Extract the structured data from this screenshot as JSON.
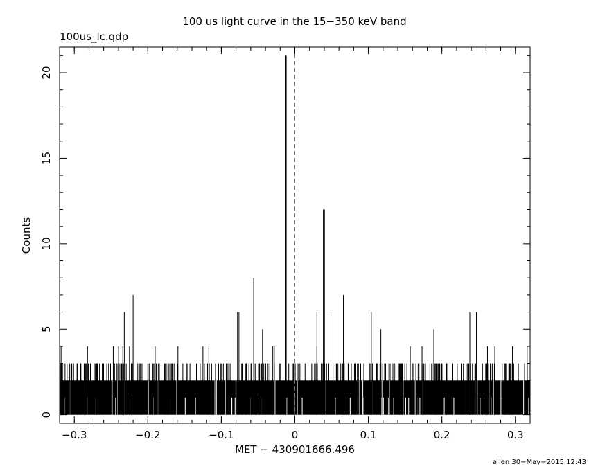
{
  "chart_data": {
    "type": "bar",
    "title": "100 us light curve in the 15−350 keV band",
    "file_label": "100us_lc.qdp",
    "xlabel": "MET − 430901666.496",
    "ylabel": "Counts",
    "xlim": [
      -0.32,
      0.32
    ],
    "ylim": [
      -0.5,
      21.5
    ],
    "bin_width": 0.0001,
    "xticks": [
      -0.3,
      -0.2,
      -0.1,
      0,
      0.1,
      0.2,
      0.3
    ],
    "xtick_labels": [
      "−0.3",
      "−0.2",
      "−0.1",
      "0",
      "0.1",
      "0.2",
      "0.3"
    ],
    "yticks": [
      0,
      5,
      10,
      15,
      20
    ],
    "ytick_labels": [
      "0",
      "5",
      "10",
      "15",
      "20"
    ],
    "background_level": 2,
    "peaks": [
      {
        "x": -0.318,
        "y": 4
      },
      {
        "x": -0.296,
        "y": 3
      },
      {
        "x": -0.282,
        "y": 4
      },
      {
        "x": -0.262,
        "y": 3
      },
      {
        "x": -0.247,
        "y": 4
      },
      {
        "x": -0.24,
        "y": 4
      },
      {
        "x": -0.234,
        "y": 4
      },
      {
        "x": -0.232,
        "y": 6
      },
      {
        "x": -0.225,
        "y": 4
      },
      {
        "x": -0.22,
        "y": 7
      },
      {
        "x": -0.19,
        "y": 4
      },
      {
        "x": -0.159,
        "y": 4
      },
      {
        "x": -0.125,
        "y": 4
      },
      {
        "x": -0.117,
        "y": 4
      },
      {
        "x": -0.078,
        "y": 6
      },
      {
        "x": -0.076,
        "y": 6
      },
      {
        "x": -0.056,
        "y": 8
      },
      {
        "x": -0.044,
        "y": 5
      },
      {
        "x": -0.03,
        "y": 4
      },
      {
        "x": -0.028,
        "y": 4
      },
      {
        "x": -0.012,
        "y": 21
      },
      {
        "x": 0.03,
        "y": 4
      },
      {
        "x": 0.03,
        "y": 6
      },
      {
        "x": 0.039,
        "y": 12
      },
      {
        "x": 0.04,
        "y": 12
      },
      {
        "x": 0.049,
        "y": 6
      },
      {
        "x": 0.066,
        "y": 7
      },
      {
        "x": 0.104,
        "y": 6
      },
      {
        "x": 0.117,
        "y": 5
      },
      {
        "x": 0.157,
        "y": 4
      },
      {
        "x": 0.173,
        "y": 4
      },
      {
        "x": 0.189,
        "y": 5
      },
      {
        "x": 0.238,
        "y": 6
      },
      {
        "x": 0.247,
        "y": 6
      },
      {
        "x": 0.262,
        "y": 4
      },
      {
        "x": 0.272,
        "y": 4
      },
      {
        "x": 0.296,
        "y": 4
      },
      {
        "x": 0.316,
        "y": 4
      }
    ],
    "reference_line": {
      "x": 0,
      "style": "dashed",
      "color": "#2a8fb8"
    }
  },
  "footer": "allen 30−May−2015 12:43"
}
